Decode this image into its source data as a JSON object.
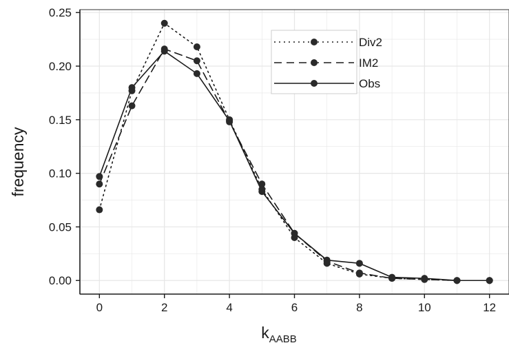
{
  "chart_data": {
    "type": "line",
    "title": "",
    "xlabel": "k",
    "xlabel_subscript": "AABB",
    "ylabel": "frequency",
    "xlim": [
      -0.6,
      12.6
    ],
    "ylim": [
      -0.0127,
      0.2527
    ],
    "x_ticks": [
      0,
      2,
      4,
      6,
      8,
      10,
      12
    ],
    "y_ticks": [
      0.0,
      0.05,
      0.1,
      0.15,
      0.2,
      0.25
    ],
    "x_tick_labels": [
      "0",
      "2",
      "4",
      "6",
      "8",
      "10",
      "12"
    ],
    "y_tick_labels": [
      "0.00",
      "0.05",
      "0.10",
      "0.15",
      "0.20",
      "0.25"
    ],
    "grid": true,
    "legend_position": "top-right",
    "x": [
      0,
      1,
      2,
      3,
      4,
      5,
      6,
      7,
      8,
      9,
      10,
      11,
      12
    ],
    "series": [
      {
        "name": "Div2",
        "line_style": "dotted",
        "values": [
          0.066,
          0.177,
          0.24,
          0.218,
          0.15,
          0.085,
          0.04,
          0.016,
          0.006,
          0.002,
          0.001,
          0.0,
          0.0
        ]
      },
      {
        "name": "IM2",
        "line_style": "dashed",
        "values": [
          0.09,
          0.163,
          0.216,
          0.205,
          0.148,
          0.09,
          0.044,
          0.018,
          0.007,
          0.002,
          0.001,
          0.0,
          0.0
        ]
      },
      {
        "name": "Obs",
        "line_style": "solid",
        "values": [
          0.097,
          0.18,
          0.214,
          0.193,
          0.149,
          0.083,
          0.044,
          0.019,
          0.016,
          0.003,
          0.002,
          0.0,
          0.0
        ]
      }
    ],
    "colors": {
      "line": "#1a1a1a",
      "marker": "#2a2a2a",
      "grid": "#e6e6e6",
      "axis": "#1a1a1a",
      "panel_border": "#333333"
    }
  }
}
